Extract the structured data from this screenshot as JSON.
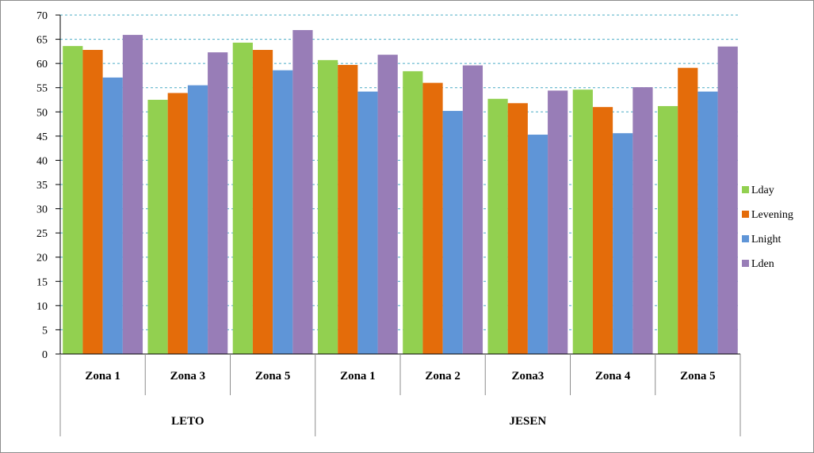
{
  "chart_data": {
    "type": "bar",
    "ylim": [
      0,
      70
    ],
    "ytick_step": 5,
    "grid": true,
    "legend_position": "right",
    "groups": [
      {
        "label": "LETO",
        "categories": [
          "Zona 1",
          "Zona 3",
          "Zona 5"
        ]
      },
      {
        "label": "JESEN",
        "categories": [
          "Zona 1",
          "Zona 2",
          "Zona3",
          "Zona 4",
          "Zona 5"
        ]
      }
    ],
    "categories": [
      "Zona 1",
      "Zona 3",
      "Zona 5",
      "Zona 1",
      "Zona 2",
      "Zona3",
      "Zona 4",
      "Zona 5"
    ],
    "series": [
      {
        "name": "Lday",
        "color": "#92d050",
        "values": [
          63.6,
          52.5,
          64.3,
          60.7,
          58.4,
          52.7,
          54.6,
          51.2
        ]
      },
      {
        "name": "Levening",
        "color": "#e46c0a",
        "values": [
          62.8,
          53.9,
          62.8,
          59.7,
          56.0,
          51.8,
          51.0,
          59.1
        ]
      },
      {
        "name": "Lnight",
        "color": "#5f95d7",
        "values": [
          57.1,
          55.5,
          58.6,
          54.2,
          50.2,
          45.3,
          45.6,
          54.2
        ]
      },
      {
        "name": "Lden",
        "color": "#987db7",
        "values": [
          65.9,
          62.3,
          66.9,
          61.8,
          59.6,
          54.4,
          55.1,
          63.5
        ]
      }
    ]
  }
}
